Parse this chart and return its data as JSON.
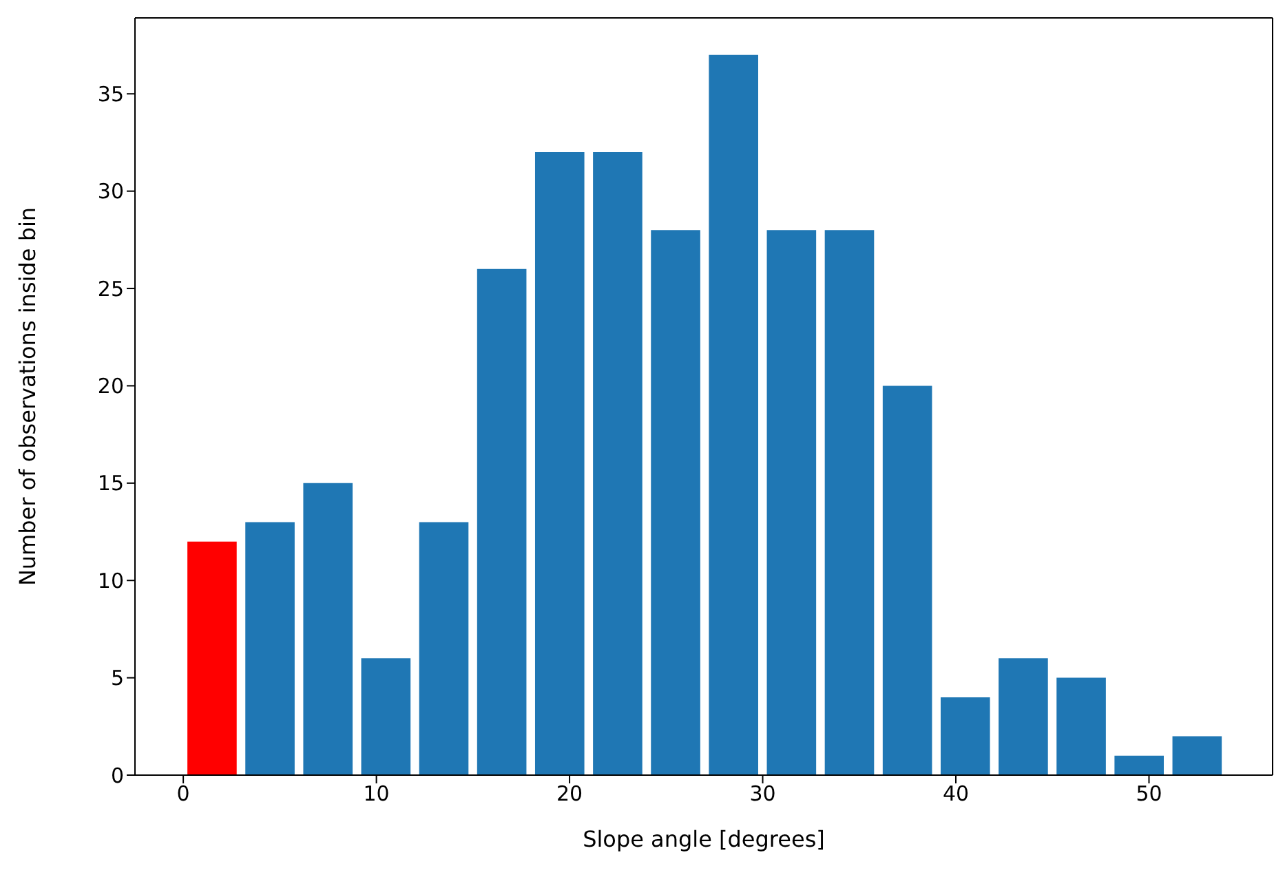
{
  "chart_data": {
    "type": "histogram",
    "xlabel": "Slope angle [degrees]",
    "ylabel": "Number of observations inside bin",
    "bins": [
      0,
      3,
      6,
      9,
      12,
      15,
      18,
      21,
      24,
      27,
      30,
      33,
      36,
      39,
      42,
      45,
      48,
      51,
      54
    ],
    "values": [
      12,
      13,
      15,
      6,
      13,
      26,
      32,
      32,
      28,
      37,
      28,
      28,
      20,
      4,
      6,
      5,
      1,
      2
    ],
    "colors": [
      "#ff0000",
      "#1f77b4",
      "#1f77b4",
      "#1f77b4",
      "#1f77b4",
      "#1f77b4",
      "#1f77b4",
      "#1f77b4",
      "#1f77b4",
      "#1f77b4",
      "#1f77b4",
      "#1f77b4",
      "#1f77b4",
      "#1f77b4",
      "#1f77b4",
      "#1f77b4",
      "#1f77b4",
      "#1f77b4"
    ],
    "xlim": [
      -2.5,
      56.4
    ],
    "xticks": [
      0,
      10,
      20,
      30,
      40,
      50
    ],
    "ylim": [
      0,
      38.9
    ],
    "yticks": [
      0,
      5,
      10,
      15,
      20,
      25,
      30,
      35
    ],
    "grid": false
  }
}
